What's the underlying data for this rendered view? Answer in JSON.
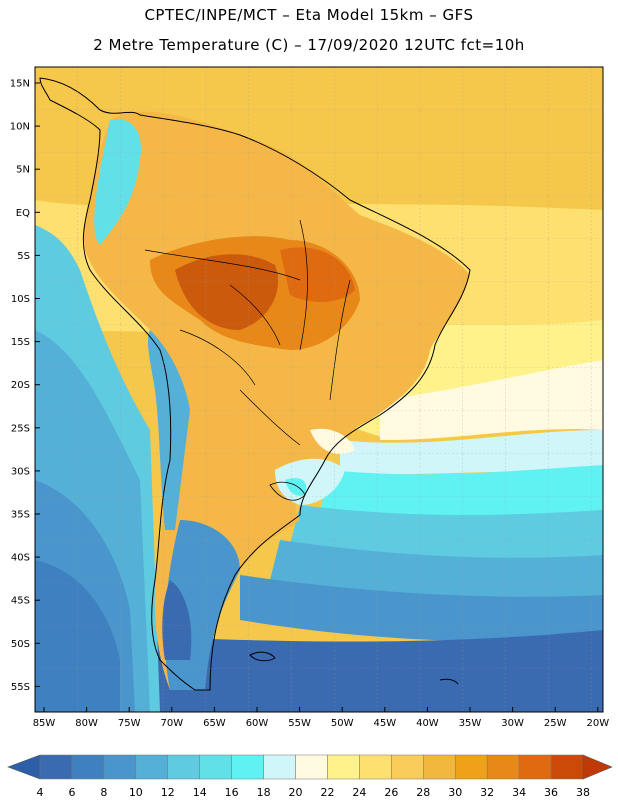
{
  "header": {
    "line1": "CPTEC/INPE/MCT –  Eta Model 15km – GFS",
    "line2": "2 Metre Temperature (C) – 17/09/2020 12UTC fct=10h"
  },
  "lat_labels": [
    "15N",
    "10N",
    "5N",
    "EQ",
    "5S",
    "10S",
    "15S",
    "20S",
    "25S",
    "30S",
    "35S",
    "40S",
    "45S",
    "50S",
    "55S"
  ],
  "lon_labels": [
    "85W",
    "80W",
    "75W",
    "70W",
    "65W",
    "60W",
    "55W",
    "50W",
    "45W",
    "40W",
    "35W",
    "30W",
    "25W",
    "20W"
  ],
  "colorbar": {
    "labels": [
      "4",
      "6",
      "8",
      "10",
      "12",
      "14",
      "16",
      "18",
      "20",
      "22",
      "24",
      "26",
      "28",
      "30",
      "32",
      "34",
      "36",
      "38"
    ],
    "colors": [
      "#3a6ab0",
      "#3f80c0",
      "#4a95cc",
      "#55b0d8",
      "#5ecbe0",
      "#62e0e8",
      "#60f2f2",
      "#d0f6fa",
      "#fffae0",
      "#fff28a",
      "#fde070",
      "#f8cc58",
      "#f2b83e",
      "#eea21a",
      "#e88818",
      "#e06a10",
      "#cc4a08"
    ],
    "low_color": "#2e5ea8",
    "high_color": "#c03a08"
  }
}
